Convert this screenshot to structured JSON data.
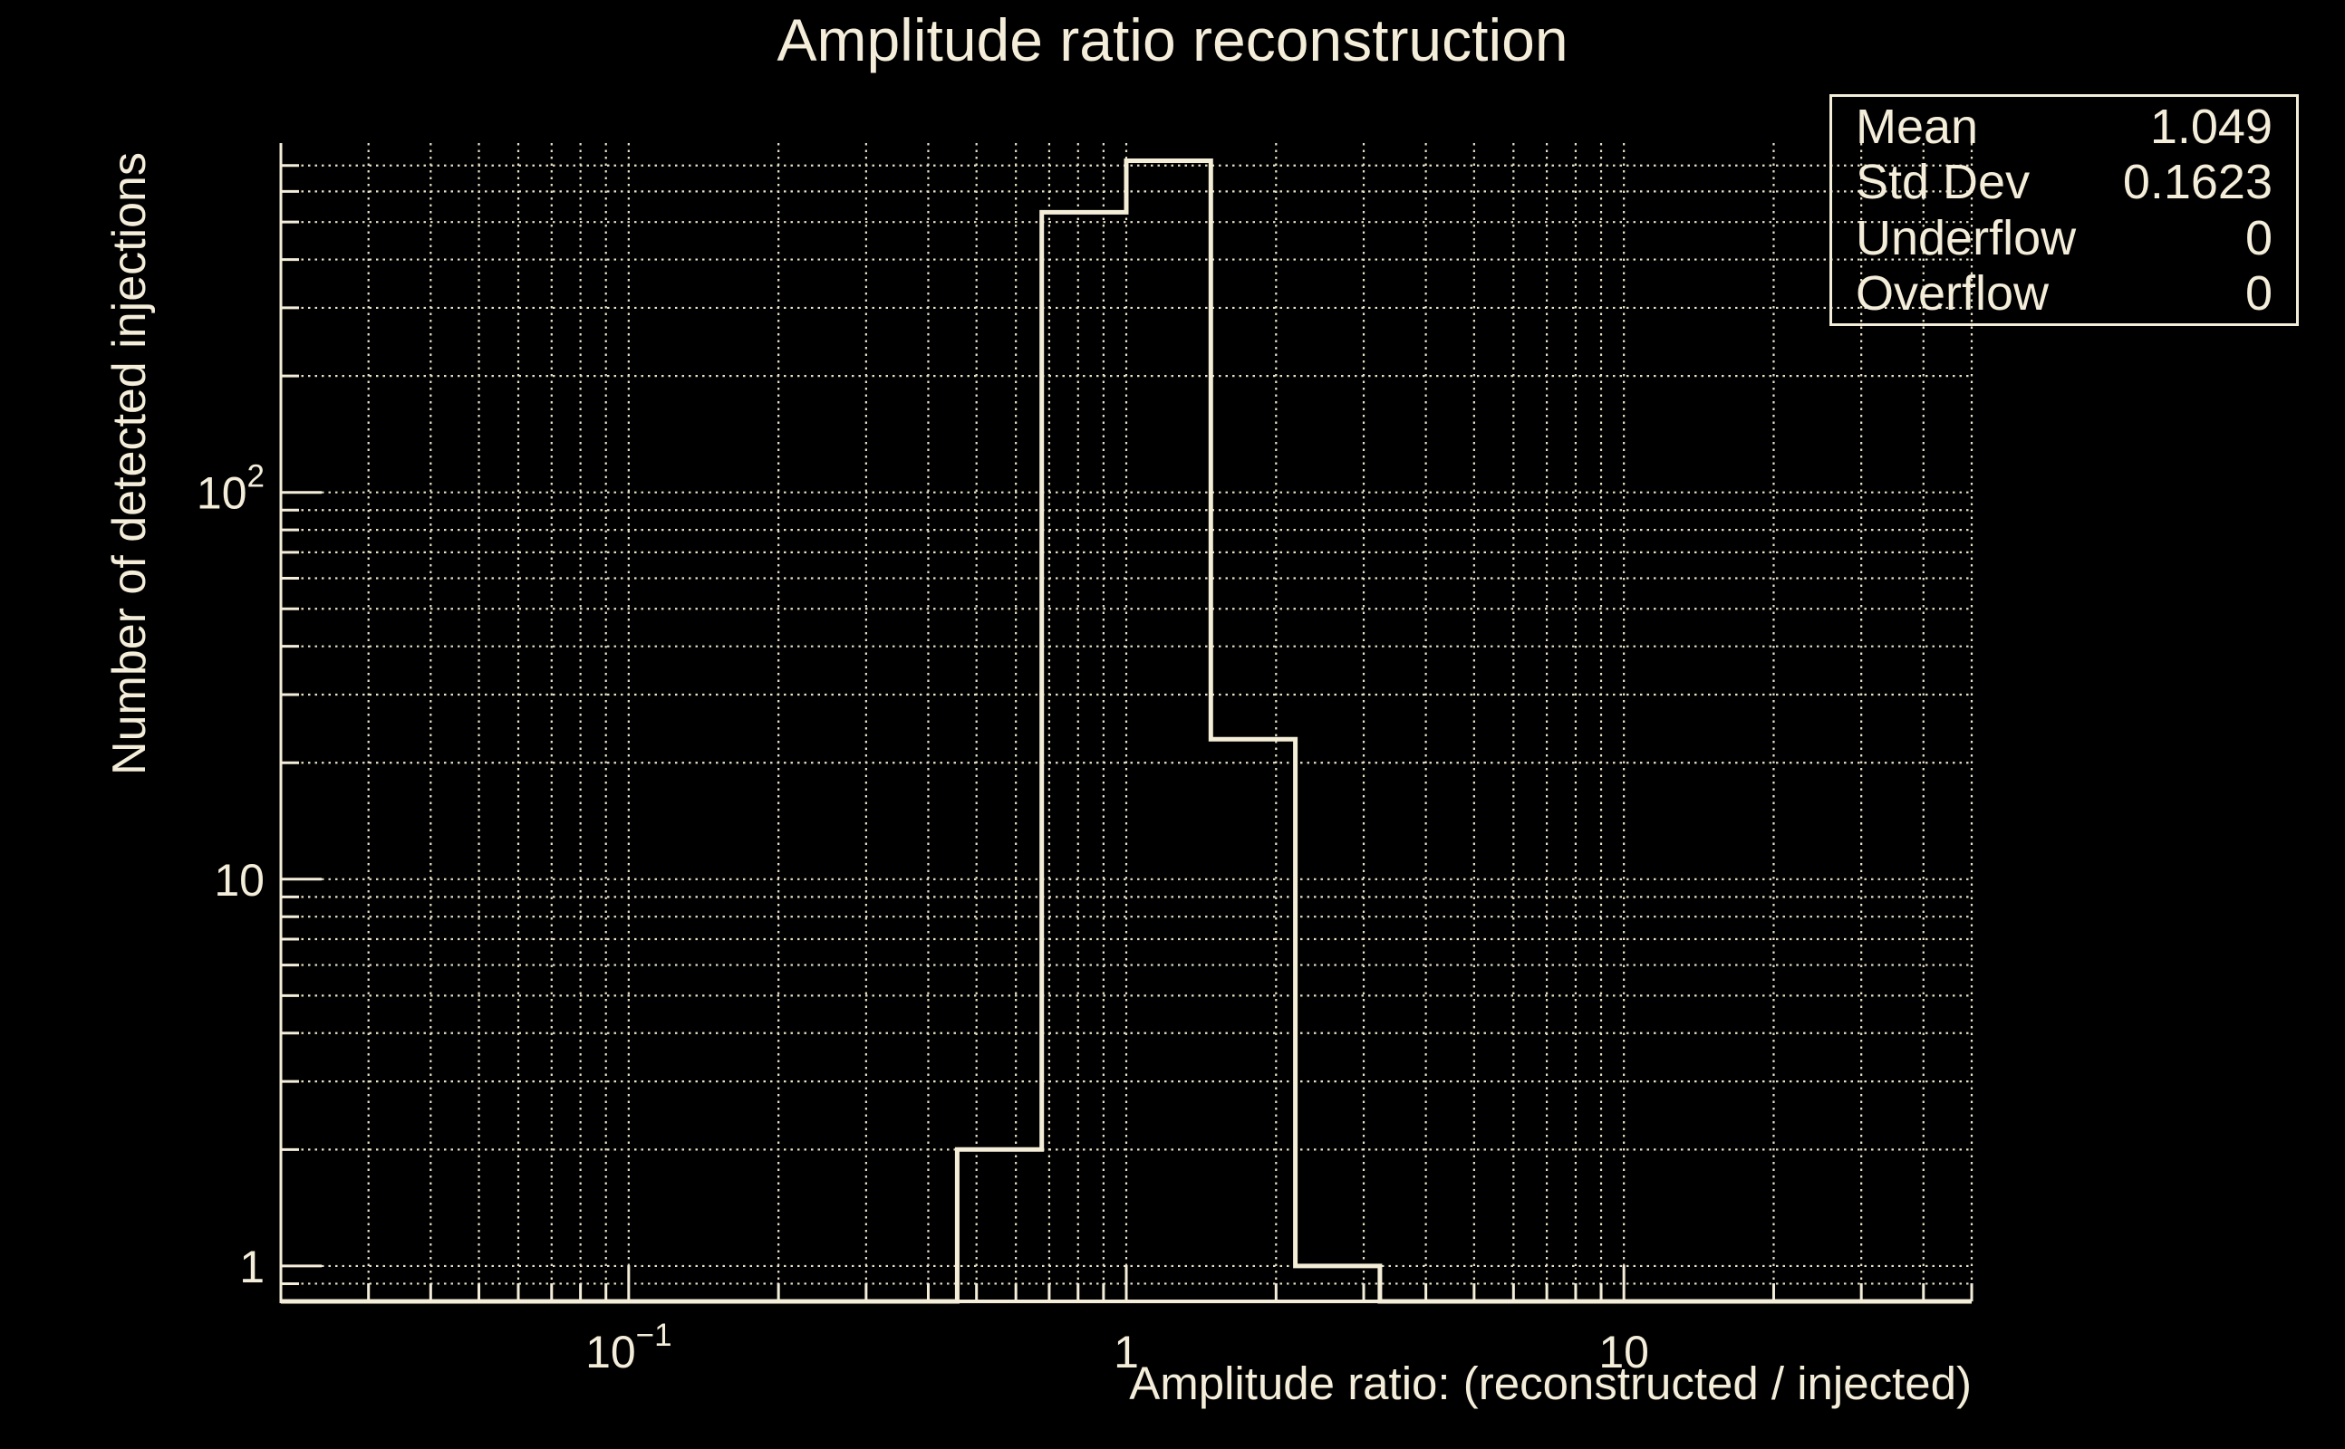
{
  "colors": {
    "background": "#000000",
    "foreground": "#F3EDD9",
    "grid": "#E8E1C6",
    "histogram_line": "#F4EED8"
  },
  "chart_data": {
    "type": "histogram",
    "title": "Amplitude ratio reconstruction",
    "xlabel": "Amplitude ratio: (reconstructed / injected)",
    "ylabel": "Number of detected injections",
    "x_scale": "log",
    "y_scale": "log",
    "xlim": [
      0.02,
      50
    ],
    "ylim": [
      0.81,
      800
    ],
    "grid": true,
    "n_bins": 20,
    "bin_edges": [
      0.02,
      0.0296,
      0.0437,
      0.0647,
      0.0956,
      0.1414,
      0.2091,
      0.3092,
      0.4573,
      0.6762,
      1.0,
      1.4788,
      2.1868,
      3.2337,
      4.7818,
      7.0711,
      10.456,
      15.462,
      22.865,
      33.812,
      50.0
    ],
    "counts": [
      0,
      0,
      0,
      0,
      0,
      0,
      0,
      0,
      2,
      530,
      720,
      23,
      1,
      0,
      0,
      0,
      0,
      0,
      0,
      0
    ],
    "x_ticks": [
      {
        "value": 0.1,
        "base": "10",
        "exp": "−1"
      },
      {
        "value": 1,
        "text": "1"
      },
      {
        "value": 10,
        "text": "10"
      }
    ],
    "y_ticks": [
      {
        "value": 1,
        "text": "1"
      },
      {
        "value": 10,
        "text": "10"
      },
      {
        "value": 100,
        "base": "10",
        "exp": "2"
      }
    ],
    "legend_position": "top-right",
    "stats": {
      "rows": [
        {
          "label": "Mean",
          "value": "1.049"
        },
        {
          "label": "Std Dev",
          "value": "0.1623"
        },
        {
          "label": "Underflow",
          "value": "0"
        },
        {
          "label": "Overflow",
          "value": "0"
        }
      ]
    }
  }
}
